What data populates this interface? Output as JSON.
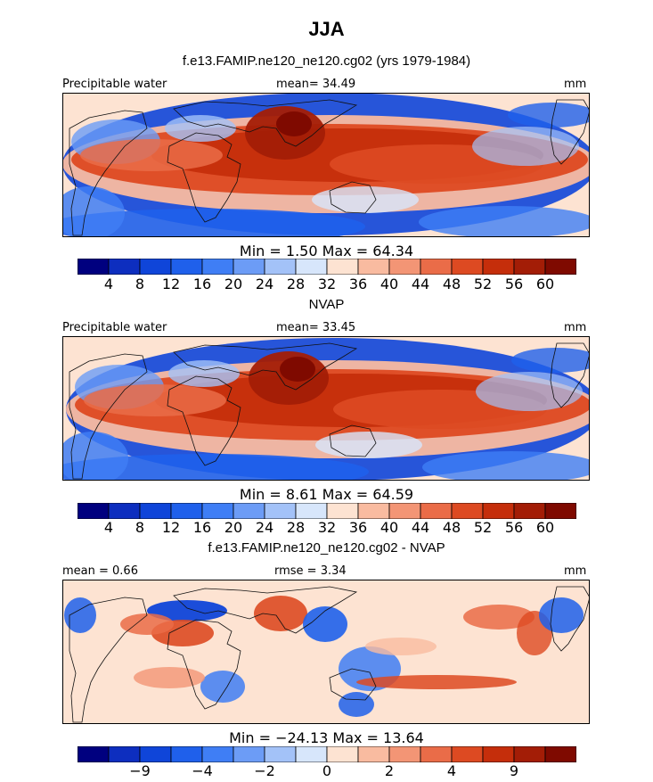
{
  "figure": {
    "title": "JJA",
    "colors": {
      "palette": [
        "#00007f",
        "#0d2ebf",
        "#0f45d9",
        "#1f60eb",
        "#3f7ef5",
        "#6c9cf6",
        "#a3c2f8",
        "#d7e6fb",
        "#fde3d2",
        "#f9bba0",
        "#f39575",
        "#ea6c48",
        "#dd4a22",
        "#c52e0b",
        "#a31d06",
        "#7f0a00"
      ]
    }
  },
  "panels": [
    {
      "subtitle": "f.e13.FAMIP.ne120_ne120.cg02 (yrs 1979-1984)",
      "left_label": "Precipitable water",
      "center_label": "mean=  34.49",
      "right_label": "mm",
      "minmax": "Min =    1.50  Max =   64.34"
    },
    {
      "subtitle": "NVAP",
      "left_label": "Precipitable water",
      "center_label": "mean=  33.45",
      "right_label": "mm",
      "minmax": "Min =    8.61  Max =   64.59"
    },
    {
      "subtitle": "f.e13.FAMIP.ne120_ne120.cg02 - NVAP",
      "left_label": "mean =    0.66",
      "center_label": "rmse =    3.34",
      "right_label": "mm",
      "minmax": "Min = −24.13  Max =   13.64"
    }
  ],
  "chart_data": [
    {
      "type": "heatmap",
      "title": "f.e13.FAMIP.ne120_ne120.cg02 (yrs 1979-1984)",
      "variable": "Precipitable water",
      "units": "mm",
      "mean": 34.49,
      "min": 1.5,
      "max": 64.34,
      "colorbar_levels": [
        4,
        8,
        12,
        16,
        20,
        24,
        28,
        32,
        36,
        40,
        44,
        48,
        52,
        56,
        60
      ],
      "colorbar_ticklabels": [
        "4",
        "8",
        "12",
        "16",
        "20",
        "24",
        "28",
        "32",
        "36",
        "40",
        "44",
        "48",
        "52",
        "56",
        "60"
      ]
    },
    {
      "type": "heatmap",
      "title": "NVAP",
      "variable": "Precipitable water",
      "units": "mm",
      "mean": 33.45,
      "min": 8.61,
      "max": 64.59,
      "colorbar_levels": [
        4,
        8,
        12,
        16,
        20,
        24,
        28,
        32,
        36,
        40,
        44,
        48,
        52,
        56,
        60
      ],
      "colorbar_ticklabels": [
        "4",
        "8",
        "12",
        "16",
        "20",
        "24",
        "28",
        "32",
        "36",
        "40",
        "44",
        "48",
        "52",
        "56",
        "60"
      ]
    },
    {
      "type": "heatmap",
      "title": "f.e13.FAMIP.ne120_ne120.cg02 - NVAP",
      "units": "mm",
      "mean": 0.66,
      "rmse": 3.34,
      "min": -24.13,
      "max": 13.64,
      "colorbar_ticklabels": [
        "−9",
        "−4",
        "−2",
        "0",
        "2",
        "4",
        "9"
      ]
    }
  ]
}
